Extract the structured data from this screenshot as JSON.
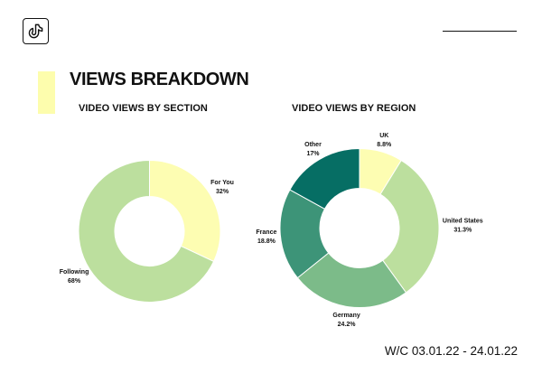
{
  "logo": {
    "icon": "tiktok-icon"
  },
  "title": "VIEWS BREAKDOWN",
  "footer": {
    "date_range": "W/C 03.01.22 - 24.01.22"
  },
  "colors": {
    "accent": "#fdfdad"
  },
  "chart_data": [
    {
      "type": "pie",
      "donut": true,
      "title": "VIDEO VIEWS BY SECTION",
      "unit": "%",
      "slices": [
        {
          "label": "For You",
          "value": 32,
          "color": "#fdfdb2"
        },
        {
          "label": "Following",
          "value": 68,
          "color": "#bcdf9e"
        }
      ]
    },
    {
      "type": "pie",
      "donut": true,
      "title": "VIDEO VIEWS BY REGION",
      "unit": "%",
      "slices": [
        {
          "label": "UK",
          "value": 8.8,
          "color": "#fdfdb2"
        },
        {
          "label": "United States",
          "value": 31.3,
          "color": "#bcdf9e"
        },
        {
          "label": "Germany",
          "value": 24.2,
          "color": "#7cbb89"
        },
        {
          "label": "France",
          "value": 18.8,
          "color": "#3d9478"
        },
        {
          "label": "Other",
          "value": 17,
          "color": "#066e64"
        }
      ]
    }
  ]
}
